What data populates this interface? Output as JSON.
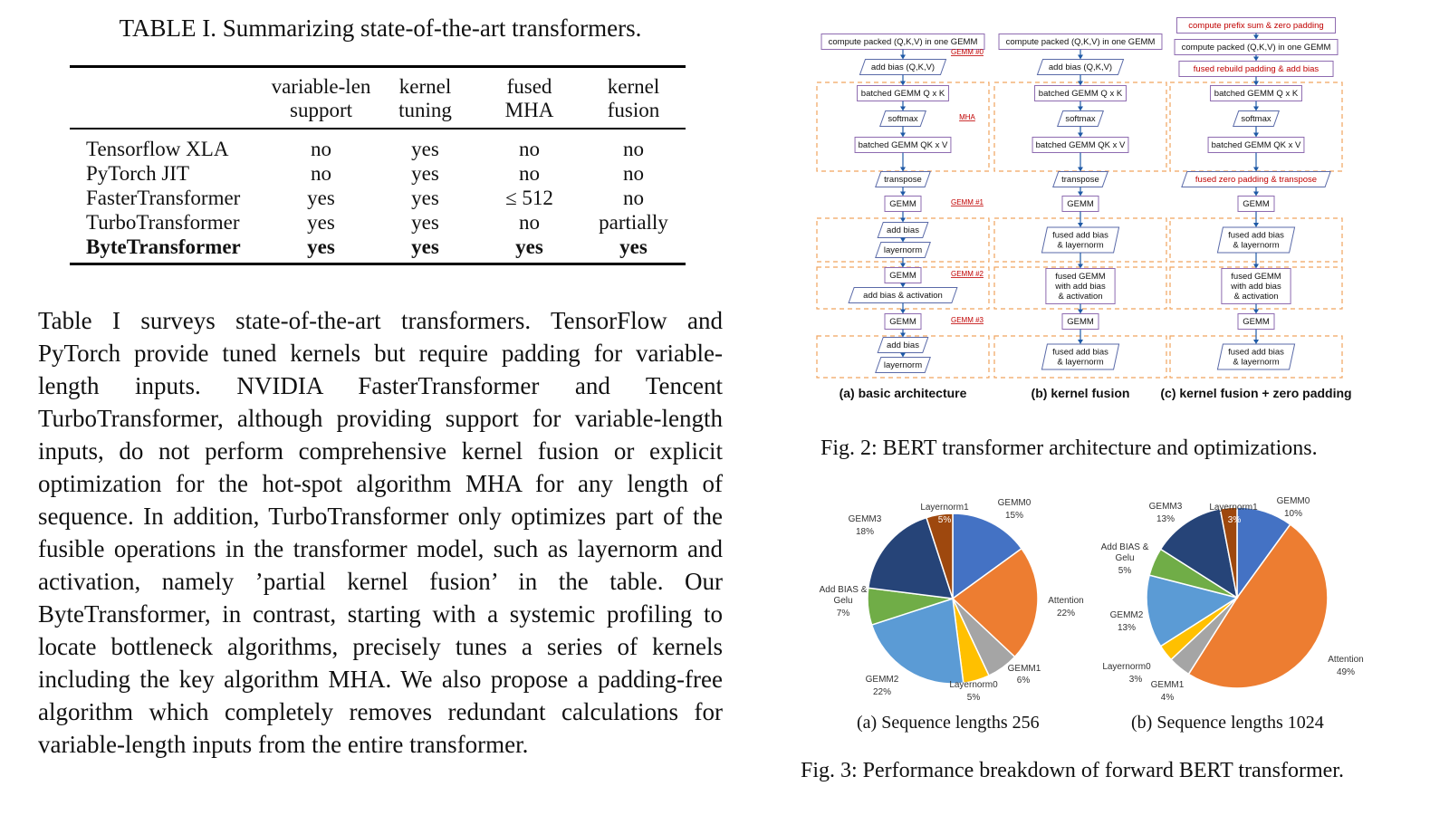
{
  "table": {
    "caption": "TABLE I. Summarizing state-of-the-art transformers.",
    "headers": [
      [
        "",
        ""
      ],
      [
        "variable-len",
        "support"
      ],
      [
        "kernel",
        "tuning"
      ],
      [
        "fused",
        "MHA"
      ],
      [
        "kernel",
        "fusion"
      ]
    ],
    "rows": [
      {
        "name": "Tensorflow XLA",
        "cells": [
          "no",
          "yes",
          "no",
          "no"
        ]
      },
      {
        "name": "PyTorch JIT",
        "cells": [
          "no",
          "yes",
          "no",
          "no"
        ]
      },
      {
        "name": "FasterTransformer",
        "cells": [
          "yes",
          "yes",
          "≤ 512",
          "no"
        ]
      },
      {
        "name": "TurboTransformer",
        "cells": [
          "yes",
          "yes",
          "no",
          "partially"
        ]
      },
      {
        "name": "ByteTransformer",
        "cells": [
          "yes",
          "yes",
          "yes",
          "yes"
        ]
      }
    ]
  },
  "paragraph": "Table I surveys state-of-the-art transformers. TensorFlow and PyTorch provide tuned kernels but require padding for variable-length inputs. NVIDIA FasterTransformer and Tencent TurboTransformer, although providing support for variable-length inputs, do not perform comprehensive kernel fusion or explicit optimization for the hot-spot algorithm MHA for any length of sequence. In addition, TurboTrans­former only optimizes part of the fusible operations in the transformer model, such as layernorm and activation, namely ’partial kernel fusion’ in the table. Our ByteTransformer, in contrast, starting with a systemic profiling to locate bottleneck algorithms, precisely tunes a series of kernels including the key algorithm MHA. We also propose a padding-free algorithm which completely removes redundant calculations for variable-length inputs from the entire transformer.",
  "fig2": {
    "caption": "Fig. 2: BERT transformer architecture and optimizations.",
    "columns": [
      {
        "label": "(a) basic architecture",
        "top": [
          "compute packed (Q,K,V) in one GEMM",
          "add bias (Q,K,V)"
        ],
        "mha": [
          "batched GEMM Q x K",
          "softmax",
          "batched GEMM QK x V"
        ],
        "mid": [
          "transpose",
          "GEMM"
        ],
        "block2": [
          "add bias",
          "layernorm"
        ],
        "block3": [
          "GEMM",
          "add bias & activation"
        ],
        "gemm3": "GEMM",
        "block4": [
          "add bias",
          "layernorm"
        ],
        "annotations": [
          "GEMM #0",
          "MHA",
          "GEMM #1",
          "GEMM #2",
          "GEMM #3"
        ]
      },
      {
        "label": "(b) kernel fusion",
        "top": [
          "compute packed (Q,K,V) in one GEMM",
          "add bias (Q,K,V)"
        ],
        "mha": [
          "batched GEMM Q x K",
          "softmax",
          "batched GEMM QK x V"
        ],
        "mid": [
          "transpose",
          "GEMM"
        ],
        "block2": [
          "fused add bias",
          "& layernorm"
        ],
        "block3": [
          "fused GEMM",
          "with add bias",
          "& activation"
        ],
        "gemm3": "GEMM",
        "block4": [
          "fused add bias",
          "& layernorm"
        ]
      },
      {
        "label": "(c) kernel fusion + zero padding",
        "top": [
          "compute prefix sum & zero padding",
          "compute packed (Q,K,V) in one GEMM",
          "fused rebuild padding & add bias"
        ],
        "mha": [
          "batched GEMM Q x K",
          "softmax",
          "batched GEMM QK x V"
        ],
        "mid": [
          "fused zero padding & transpose",
          "GEMM"
        ],
        "block2": [
          "fused add bias",
          "& layernorm"
        ],
        "block3": [
          "fused GEMM",
          "with add bias",
          "& activation"
        ],
        "gemm3": "GEMM",
        "block4": [
          "fused add bias",
          "& layernorm"
        ]
      }
    ]
  },
  "fig3": {
    "caption": "Fig. 3: Performance breakdown of forward BERT transformer.",
    "colors": {
      "GEMM0": "#4472c4",
      "Attention": "#ed7d31",
      "GEMM1": "#a5a5a5",
      "Layernorm0": "#ffc000",
      "GEMM2": "#5b9bd5",
      "Add BIAS & Gelu": "#70ad47",
      "GEMM3": "#264478",
      "Layernorm1": "#9e480e"
    },
    "charts": [
      {
        "caption": "(a) Sequence lengths 256",
        "chart_data": {
          "type": "pie",
          "title": "(a) Sequence lengths 256",
          "slices": [
            {
              "label": "GEMM0",
              "value": 15,
              "text": "15%"
            },
            {
              "label": "Attention",
              "value": 22,
              "text": "22%"
            },
            {
              "label": "GEMM1",
              "value": 6,
              "text": "6%"
            },
            {
              "label": "Layernorm0",
              "value": 5,
              "text": "5%"
            },
            {
              "label": "GEMM2",
              "value": 22,
              "text": "22%"
            },
            {
              "label": "Add BIAS & Gelu",
              "value": 7,
              "text": "7%"
            },
            {
              "label": "GEMM3",
              "value": 18,
              "text": "18%"
            },
            {
              "label": "Layernorm1",
              "value": 5,
              "text": "5%"
            }
          ]
        }
      },
      {
        "caption": "(b) Sequence lengths 1024",
        "chart_data": {
          "type": "pie",
          "title": "(b) Sequence lengths 1024",
          "slices": [
            {
              "label": "GEMM0",
              "value": 10,
              "text": "10%"
            },
            {
              "label": "Attention",
              "value": 49,
              "text": "49%"
            },
            {
              "label": "GEMM1",
              "value": 4,
              "text": "4%"
            },
            {
              "label": "Layernorm0",
              "value": 3,
              "text": "3%"
            },
            {
              "label": "GEMM2",
              "value": 13,
              "text": "13%"
            },
            {
              "label": "Add BIAS & Gelu",
              "value": 5,
              "text": "5%"
            },
            {
              "label": "GEMM3",
              "value": 13,
              "text": "13%"
            },
            {
              "label": "Layernorm1",
              "value": 3,
              "text": "3%"
            }
          ]
        }
      }
    ]
  }
}
